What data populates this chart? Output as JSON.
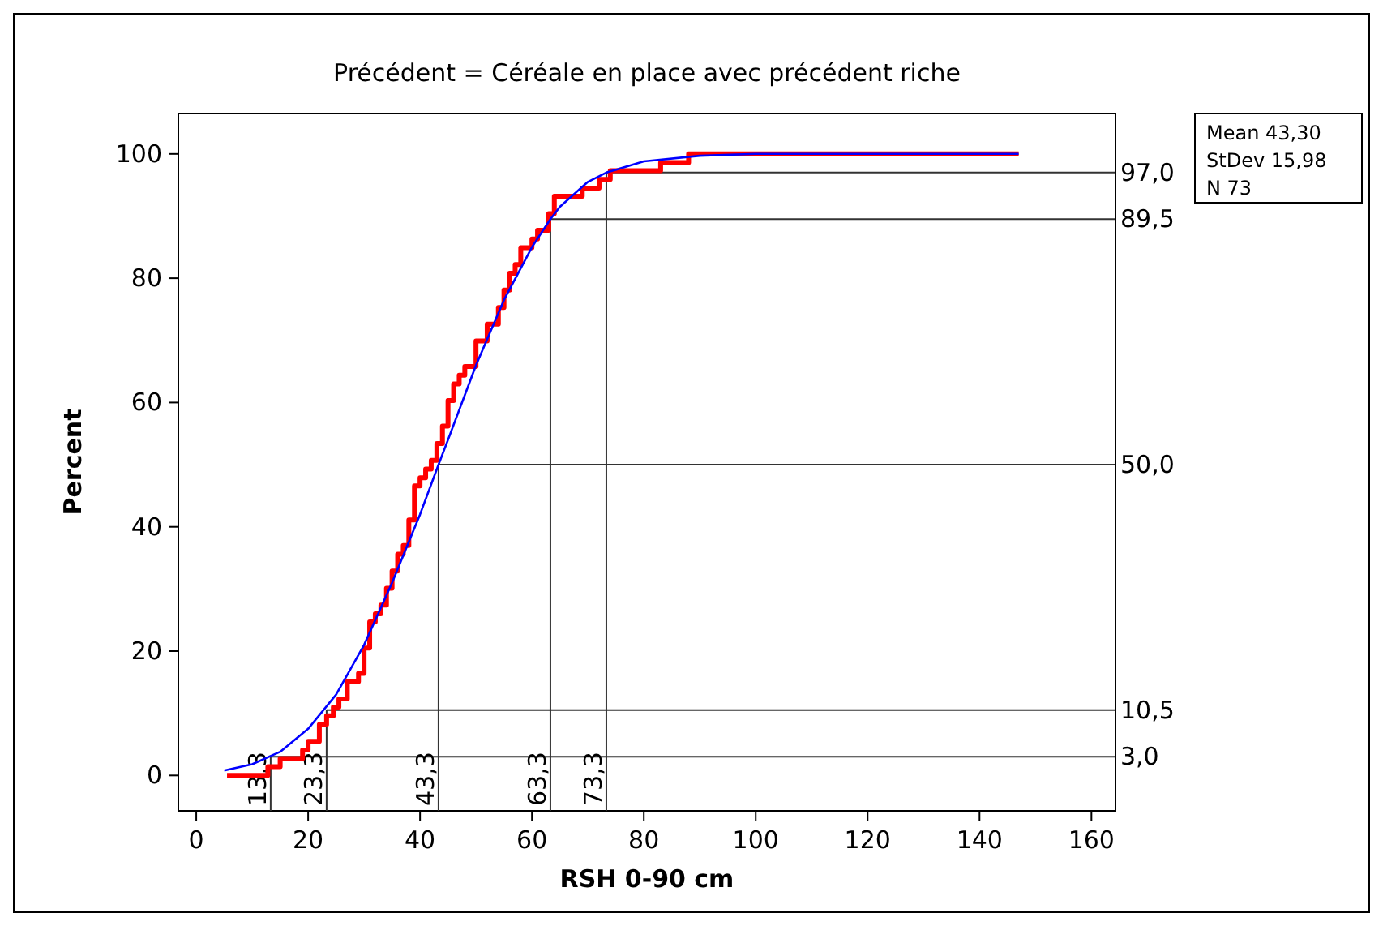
{
  "chart_data": {
    "type": "line",
    "title": "Précédent = Céréale en place avec précédent riche",
    "xlabel": "RSH 0-90 cm",
    "ylabel": "Percent",
    "xlim": [
      -3.2,
      164.3
    ],
    "ylim": [
      -5.7,
      106.5
    ],
    "xticks": [
      0,
      20,
      40,
      60,
      80,
      100,
      120,
      140,
      160
    ],
    "yticks": [
      0,
      20,
      40,
      60,
      80,
      100
    ],
    "grid": false,
    "marker": "none",
    "series": [
      {
        "type": "step",
        "color": "#ff0000",
        "x": [
          5.5,
          12.8,
          15,
          19,
          20,
          22,
          23.3,
          24.5,
          25.5,
          27,
          29,
          30,
          31,
          32,
          33,
          34,
          35,
          36,
          37,
          38,
          39,
          40,
          41,
          42,
          43,
          44,
          45,
          46,
          47,
          48,
          50,
          52,
          54,
          55,
          56,
          57,
          58,
          60,
          61,
          63,
          64,
          69,
          72,
          74,
          83,
          88,
          147
        ],
        "values": [
          0,
          1.4,
          2.7,
          4.1,
          5.5,
          8.2,
          9.6,
          11,
          12.3,
          15.1,
          16.4,
          20.5,
          24.7,
          26,
          27.4,
          30.1,
          32.9,
          35.6,
          37,
          41.1,
          46.6,
          47.9,
          49.3,
          50.7,
          53.4,
          56.2,
          60.3,
          63,
          64.4,
          65.8,
          69.9,
          72.6,
          75.3,
          78.1,
          80.8,
          82.2,
          84.9,
          86.3,
          87.7,
          90.4,
          93.2,
          94.5,
          95.9,
          97.3,
          98.6,
          100,
          100
        ]
      },
      {
        "type": "line",
        "color": "#0000ff",
        "x": [
          5,
          10,
          15,
          20,
          25,
          30,
          35,
          40,
          43.3,
          45,
          50,
          55,
          60,
          63.3,
          65,
          70,
          73.3,
          80,
          90,
          100,
          147
        ],
        "values": [
          0.8,
          1.8,
          3.8,
          7.5,
          13,
          21,
          31,
          42,
          50,
          54,
          66,
          76.5,
          85,
          89.5,
          91.5,
          95.5,
          97,
          98.8,
          99.7,
          100,
          100
        ]
      }
    ],
    "ref_lines": [
      {
        "axis": "y",
        "value": 3.0,
        "label": "3,0"
      },
      {
        "axis": "y",
        "value": 10.5,
        "label": "10,5"
      },
      {
        "axis": "y",
        "value": 50.0,
        "label": "50,0"
      },
      {
        "axis": "y",
        "value": 89.5,
        "label": "89,5"
      },
      {
        "axis": "y",
        "value": 97.0,
        "label": "97,0"
      },
      {
        "axis": "x",
        "value": 13.3,
        "label": "13,3"
      },
      {
        "axis": "x",
        "value": 23.3,
        "label": "23,3"
      },
      {
        "axis": "x",
        "value": 43.3,
        "label": "43,3"
      },
      {
        "axis": "x",
        "value": 63.3,
        "label": "63,3"
      },
      {
        "axis": "x",
        "value": 73.3,
        "label": "73,3"
      }
    ],
    "annotations": [
      "Mean 43,30",
      "StDev 15,98",
      "N 73"
    ]
  }
}
